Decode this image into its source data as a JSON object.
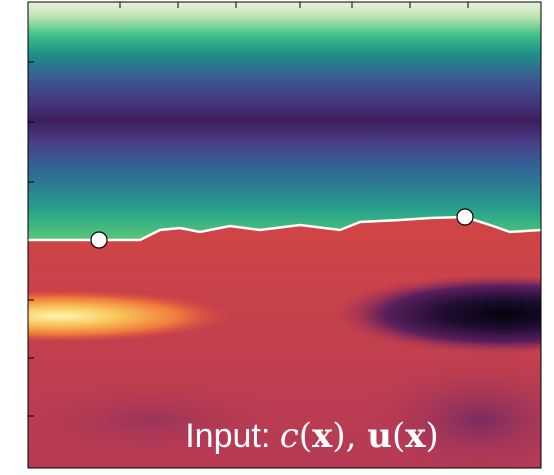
{
  "annotation": {
    "parts": [
      "Input: ",
      "c",
      "(",
      "x",
      "), ",
      "u",
      "(",
      "x",
      ")"
    ]
  }
}
